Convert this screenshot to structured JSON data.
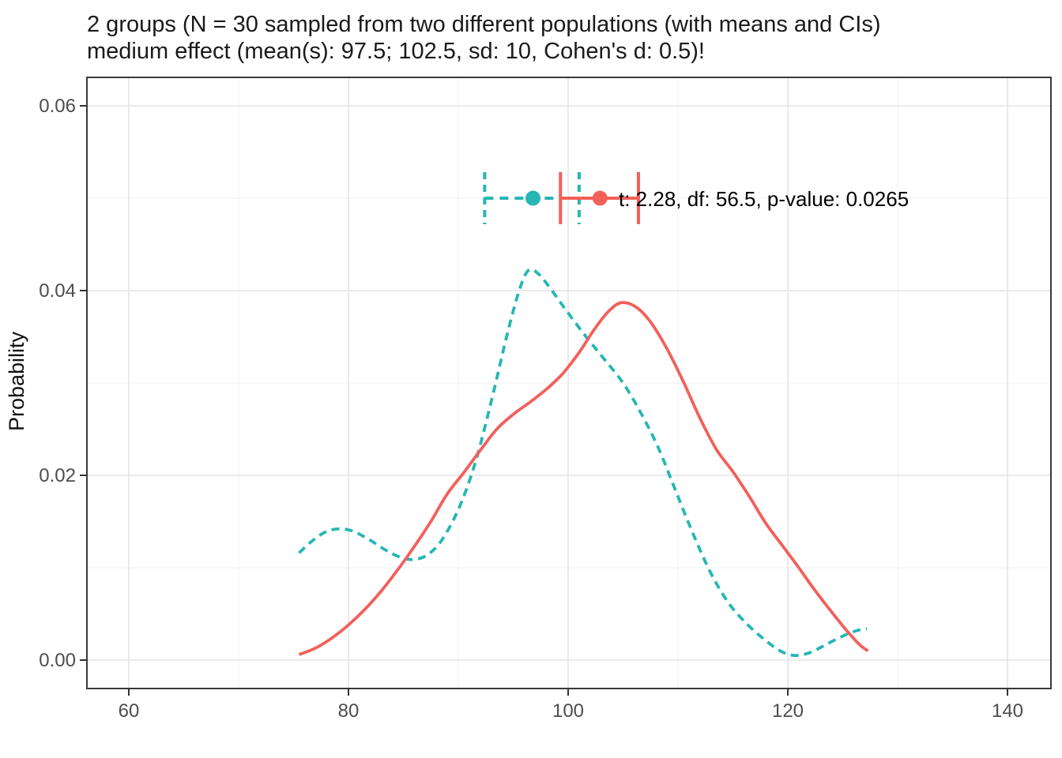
{
  "title": {
    "line1": "2 groups (N = 30 sampled from two different populations (with means and CIs)",
    "line2": "medium effect (mean(s): 97.5; 102.5, sd: 10, Cohen's d: 0.5)!"
  },
  "style": {
    "major_grid": "#e4e4e4",
    "minor_grid": "#f1f1f1",
    "panel_border": "#3a3a3a",
    "tick_color": "#333333",
    "tick_label_color": "#4d4d4d",
    "group1_color": "#26b6b4",
    "group2_color": "#f2605a"
  },
  "chart_data": {
    "type": "line",
    "title": "2 groups (N = 30 sampled from two different populations (with means and CIs) medium effect (mean(s): 97.5; 102.5, sd: 10, Cohen's d: 0.5)!",
    "xlabel": "",
    "ylabel": "Probability",
    "xlim": [
      56.2,
      144.0
    ],
    "ylim": [
      -0.003,
      0.063
    ],
    "grid": true,
    "legend": false,
    "x_ticks": [
      {
        "v": 60,
        "label": "60"
      },
      {
        "v": 80,
        "label": "80"
      },
      {
        "v": 100,
        "label": "100"
      },
      {
        "v": 120,
        "label": "120"
      },
      {
        "v": 140,
        "label": "140"
      }
    ],
    "y_ticks": [
      {
        "v": 0.0,
        "label": "0.00"
      },
      {
        "v": 0.02,
        "label": "0.02"
      },
      {
        "v": 0.04,
        "label": "0.04"
      },
      {
        "v": 0.06,
        "label": "0.06"
      }
    ],
    "x_minor": [
      70,
      90,
      110,
      130
    ],
    "y_minor": [
      0.01,
      0.03,
      0.05
    ],
    "series": [
      {
        "name": "group-1-density",
        "color": "#26b6b4",
        "line_style": "dashed",
        "points": [
          [
            75.5,
            0.0116
          ],
          [
            76.6,
            0.0128
          ],
          [
            77.8,
            0.0138
          ],
          [
            79.0,
            0.0142
          ],
          [
            80.3,
            0.014
          ],
          [
            81.8,
            0.0131
          ],
          [
            83.4,
            0.0119
          ],
          [
            84.8,
            0.0111
          ],
          [
            86.0,
            0.0109
          ],
          [
            87.2,
            0.0114
          ],
          [
            88.5,
            0.013
          ],
          [
            90.0,
            0.0163
          ],
          [
            91.5,
            0.0212
          ],
          [
            93.0,
            0.028
          ],
          [
            94.5,
            0.0355
          ],
          [
            95.6,
            0.0402
          ],
          [
            96.4,
            0.0422
          ],
          [
            97.3,
            0.0418
          ],
          [
            98.4,
            0.0402
          ],
          [
            99.8,
            0.0379
          ],
          [
            101.5,
            0.0352
          ],
          [
            103.2,
            0.0327
          ],
          [
            105.0,
            0.03
          ],
          [
            106.6,
            0.0268
          ],
          [
            108.2,
            0.023
          ],
          [
            109.8,
            0.0183
          ],
          [
            111.4,
            0.0136
          ],
          [
            113.0,
            0.0094
          ],
          [
            114.6,
            0.0062
          ],
          [
            116.2,
            0.004
          ],
          [
            117.8,
            0.0023
          ],
          [
            119.3,
            0.001
          ],
          [
            120.6,
            0.0005
          ],
          [
            122.0,
            0.0008
          ],
          [
            123.5,
            0.0017
          ],
          [
            125.0,
            0.0026
          ],
          [
            126.3,
            0.0032
          ],
          [
            127.2,
            0.0034
          ]
        ]
      },
      {
        "name": "group-2-density",
        "color": "#f2605a",
        "line_style": "solid",
        "points": [
          [
            75.5,
            0.0006
          ],
          [
            77.0,
            0.0013
          ],
          [
            78.5,
            0.0024
          ],
          [
            80.0,
            0.0038
          ],
          [
            81.5,
            0.0055
          ],
          [
            83.0,
            0.0075
          ],
          [
            84.5,
            0.0098
          ],
          [
            86.0,
            0.0123
          ],
          [
            87.5,
            0.015
          ],
          [
            89.0,
            0.018
          ],
          [
            90.5,
            0.0203
          ],
          [
            92.0,
            0.0227
          ],
          [
            93.5,
            0.025
          ],
          [
            95.0,
            0.0266
          ],
          [
            96.5,
            0.0279
          ],
          [
            98.0,
            0.0293
          ],
          [
            99.5,
            0.031
          ],
          [
            101.0,
            0.0333
          ],
          [
            102.5,
            0.036
          ],
          [
            103.8,
            0.0379
          ],
          [
            104.9,
            0.0387
          ],
          [
            106.2,
            0.0382
          ],
          [
            107.5,
            0.0366
          ],
          [
            109.0,
            0.0337
          ],
          [
            110.5,
            0.0301
          ],
          [
            112.0,
            0.0262
          ],
          [
            113.5,
            0.0228
          ],
          [
            115.0,
            0.0204
          ],
          [
            116.5,
            0.0177
          ],
          [
            118.0,
            0.0148
          ],
          [
            119.5,
            0.0124
          ],
          [
            121.0,
            0.01
          ],
          [
            122.5,
            0.0075
          ],
          [
            124.0,
            0.0052
          ],
          [
            125.5,
            0.003
          ],
          [
            126.6,
            0.0016
          ],
          [
            127.3,
            0.001
          ]
        ]
      }
    ],
    "error_bars": [
      {
        "name": "group-1-mean-ci",
        "color": "#26b6b4",
        "line_style": "dashed",
        "y": 0.05,
        "lower": 92.4,
        "mean": 96.8,
        "upper": 101.0
      },
      {
        "name": "group-2-mean-ci",
        "color": "#f2605a",
        "line_style": "solid",
        "y": 0.05,
        "lower": 99.3,
        "mean": 102.9,
        "upper": 106.4
      }
    ],
    "annotation": {
      "text": "t: 2.28, df: 56.5, p-value: 0.0265",
      "x": 104.6,
      "y": 0.05
    }
  }
}
